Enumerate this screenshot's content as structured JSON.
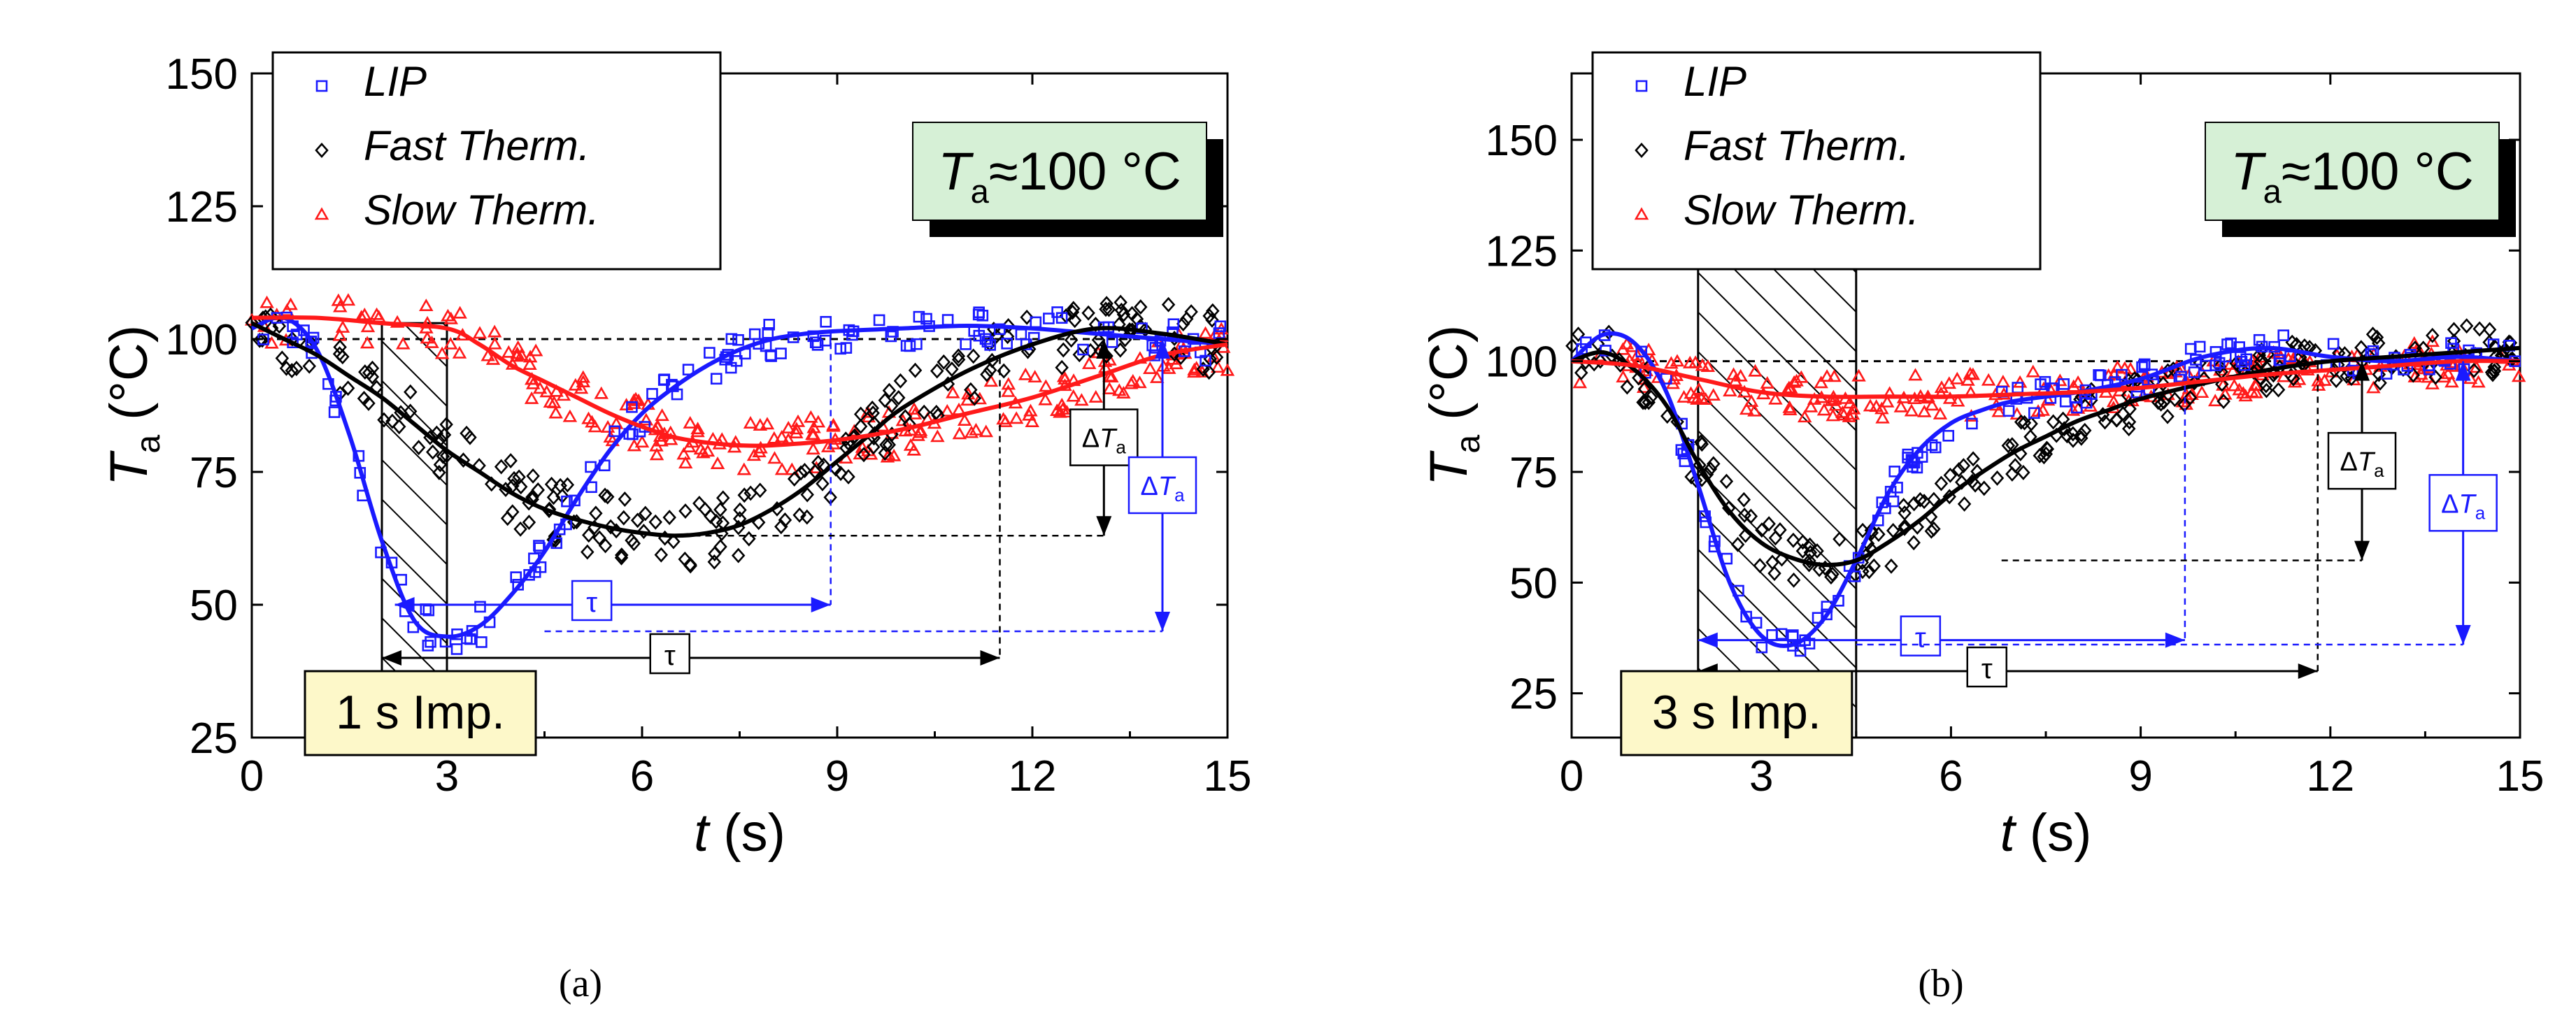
{
  "figure": {
    "caption_a": "(a)",
    "caption_b": "(b)"
  },
  "colors": {
    "lip": "#1a1aff",
    "fast": "#000000",
    "slow": "#ff1a1a",
    "info_box": "#d6f0d6",
    "imp_box": "#fdf8c9"
  },
  "chart_data": [
    {
      "type": "scatter",
      "panel": "a",
      "xlabel": "t (s)",
      "ylabel": "Ta (°C)",
      "xlim": [
        0,
        15
      ],
      "ylim": [
        25,
        150
      ],
      "xticks": [
        0,
        3,
        6,
        9,
        12,
        15
      ],
      "yticks": [
        25,
        50,
        75,
        100,
        125,
        150
      ],
      "legend": {
        "position": "top-left",
        "entries": [
          "LIP",
          "Fast Therm.",
          "Slow Therm."
        ]
      },
      "info_label": "Ta≈100 °C",
      "impulse": {
        "label": "1 s Imp.",
        "start": 2,
        "end": 3
      },
      "reference_line": 100,
      "series": [
        {
          "name": "LIP",
          "marker": "square",
          "fit": {
            "x": [
              0,
              0.5,
              1,
              1.5,
              2,
              2.5,
              3,
              3.5,
              4,
              4.5,
              5,
              5.5,
              6,
              6.5,
              7,
              7.5,
              8,
              8.5,
              9,
              10,
              11,
              12,
              13,
              14,
              15
            ],
            "y": [
              102,
              104,
              98,
              82,
              62,
              47,
              44,
              46,
              52,
              60,
              70,
              79,
              86,
              91,
              95,
              98,
              100,
              101,
              101.5,
              102,
              102.5,
              102,
              101,
              100,
              99
            ]
          }
        },
        {
          "name": "Fast Therm.",
          "marker": "diamond",
          "fit": {
            "x": [
              0,
              0.5,
              1,
              1.5,
              2,
              2.5,
              3,
              3.5,
              4,
              4.5,
              5,
              5.5,
              6,
              6.5,
              7,
              7.5,
              8,
              8.5,
              9,
              9.5,
              10,
              11,
              12,
              13,
              14,
              15
            ],
            "y": [
              103,
              100,
              97,
              93,
              89,
              84,
              79,
              75,
              71,
              68,
              66,
              64.5,
              63.5,
              63,
              63.5,
              65,
              68,
              72,
              77,
              82,
              87,
              94,
              99,
              102,
              101,
              99
            ]
          }
        },
        {
          "name": "Slow Therm.",
          "marker": "triangle",
          "fit": {
            "x": [
              0,
              1,
              2,
              3,
              3.5,
              4,
              4.5,
              5,
              5.5,
              6,
              6.5,
              7,
              7.5,
              8,
              9,
              10,
              11,
              12,
              13,
              14,
              15
            ],
            "y": [
              104,
              104,
              103,
              102,
              99,
              95,
              92,
              89,
              86,
              83.5,
              81.5,
              80.5,
              80,
              80,
              81,
              83,
              86,
              89,
              93,
              97,
              99
            ]
          }
        }
      ],
      "annotations": [
        {
          "text": "τ",
          "series": "LIP",
          "from": 2.2,
          "to": 8.9,
          "at": 50
        },
        {
          "text": "τ",
          "series": "Fast Therm.",
          "from": 2.0,
          "to": 11.5,
          "at": 40
        },
        {
          "text": "ΔTa",
          "series": "Fast Therm.",
          "from": 100,
          "to": 63,
          "at": 13.1
        },
        {
          "text": "ΔTa",
          "series": "LIP",
          "from": 100,
          "to": 45,
          "at": 14.0
        }
      ]
    },
    {
      "type": "scatter",
      "panel": "b",
      "xlabel": "t (s)",
      "ylabel": "Ta (°C)",
      "xlim": [
        0,
        15
      ],
      "ylim": [
        15,
        165
      ],
      "xticks": [
        0,
        3,
        6,
        9,
        12,
        15
      ],
      "yticks": [
        25,
        50,
        75,
        100,
        125,
        150
      ],
      "legend": {
        "position": "top-left",
        "entries": [
          "LIP",
          "Fast Therm.",
          "Slow Therm."
        ]
      },
      "info_label": "Ta≈100 °C",
      "impulse": {
        "label": "3 s Imp.",
        "start": 2,
        "end": 4.5
      },
      "reference_line": 100,
      "series": [
        {
          "name": "LIP",
          "marker": "square",
          "fit": {
            "x": [
              0,
              0.5,
              1,
              1.5,
              2,
              2.5,
              3,
              3.5,
              4,
              4.5,
              5,
              5.5,
              6,
              6.5,
              7,
              8,
              9,
              10,
              11,
              12,
              13,
              14,
              15
            ],
            "y": [
              100,
              106,
              104,
              93,
              72,
              50,
              38,
              36,
              42,
              55,
              70,
              80,
              86,
              89,
              91,
              93,
              96,
              101,
              103,
              101,
              100,
              101,
              100
            ]
          }
        },
        {
          "name": "Fast Therm.",
          "marker": "diamond",
          "fit": {
            "x": [
              0,
              0.5,
              1,
              1.5,
              2,
              2.5,
              3,
              3.5,
              4,
              4.5,
              5,
              5.5,
              6,
              6.5,
              7,
              7.5,
              8,
              8.5,
              9,
              10,
              11,
              12,
              13,
              14,
              15
            ],
            "y": [
              100,
              102,
              98,
              90,
              77,
              66,
              59,
              55.5,
              54,
              55,
              59,
              64,
              70,
              75,
              79.5,
              83,
              86.5,
              89,
              91.5,
              95,
              98,
              100,
              101,
              102,
              103
            ]
          }
        },
        {
          "name": "Slow Therm.",
          "marker": "triangle",
          "fit": {
            "x": [
              0,
              1,
              2,
              3,
              4,
              5,
              6,
              7,
              8,
              9,
              10,
              11,
              12,
              13,
              14,
              15
            ],
            "y": [
              100,
              99,
              96,
              93,
              92,
              92,
              92,
              92.5,
              93,
              94,
              95.5,
              97,
              98,
              99,
              100,
              100
            ]
          }
        }
      ],
      "annotations": [
        {
          "text": "τ",
          "series": "LIP",
          "from": 2.0,
          "to": 9.7,
          "at": 37
        },
        {
          "text": "τ",
          "series": "Fast Therm.",
          "from": 2.0,
          "to": 11.8,
          "at": 30
        },
        {
          "text": "ΔTa",
          "series": "Fast Therm.",
          "from": 100,
          "to": 55,
          "at": 12.5
        },
        {
          "text": "ΔTa",
          "series": "LIP",
          "from": 100,
          "to": 36,
          "at": 14.1
        }
      ]
    }
  ]
}
